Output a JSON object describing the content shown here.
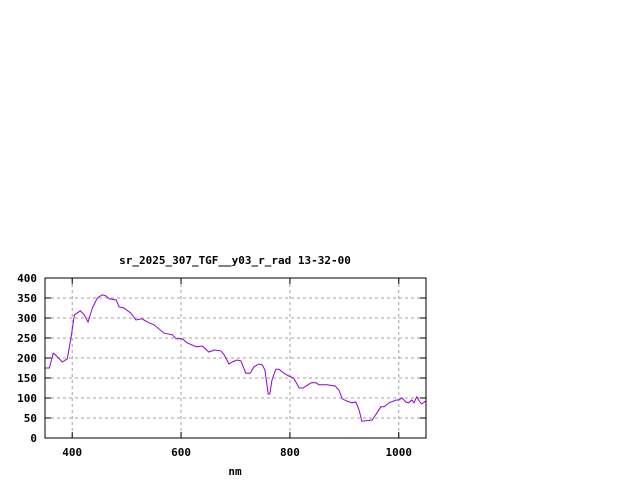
{
  "chart_data": {
    "type": "line",
    "title": "sr_2025_307_TGF__y03_r_rad 13-32-00",
    "xlabel": "nm",
    "ylabel": "",
    "xlim": [
      350,
      1050
    ],
    "ylim": [
      0,
      400
    ],
    "xticks": [
      400,
      600,
      800,
      1000
    ],
    "yticks": [
      0,
      50,
      100,
      150,
      200,
      250,
      300,
      350,
      400
    ],
    "grid": true,
    "line_color": "#9400d3",
    "series": [
      {
        "x": [
          350,
          358,
          365,
          369,
          382,
          391,
          398,
          404,
          415,
          422,
          429,
          437,
          446,
          455,
          462,
          468,
          481,
          486,
          495,
          508,
          517,
          528,
          541,
          550,
          569,
          584,
          591,
          602,
          611,
          628,
          639,
          651,
          661,
          673,
          679,
          688,
          694,
          703,
          710,
          719,
          727,
          734,
          743,
          749,
          754,
          760,
          763,
          767,
          774,
          780,
          789,
          798,
          807,
          817,
          824,
          839,
          848,
          853,
          868,
          883,
          890,
          896,
          905,
          914,
          921,
          927,
          932,
          951,
          960,
          967,
          973,
          982,
          995,
          1000,
          1006,
          1013,
          1018,
          1024,
          1028,
          1033,
          1039,
          1042,
          1050
        ],
        "y": [
          175,
          175,
          212,
          208,
          190,
          198,
          252,
          308,
          318,
          308,
          290,
          325,
          350,
          358,
          355,
          348,
          345,
          328,
          325,
          312,
          295,
          298,
          288,
          283,
          262,
          258,
          248,
          248,
          238,
          228,
          230,
          215,
          220,
          218,
          208,
          185,
          190,
          195,
          193,
          162,
          162,
          178,
          185,
          183,
          170,
          110,
          110,
          145,
          172,
          172,
          162,
          155,
          150,
          125,
          125,
          138,
          138,
          133,
          133,
          130,
          120,
          98,
          92,
          88,
          90,
          70,
          42,
          45,
          63,
          78,
          78,
          88,
          95,
          95,
          100,
          90,
          88,
          95,
          88,
          103,
          90,
          85,
          93
        ]
      }
    ]
  }
}
